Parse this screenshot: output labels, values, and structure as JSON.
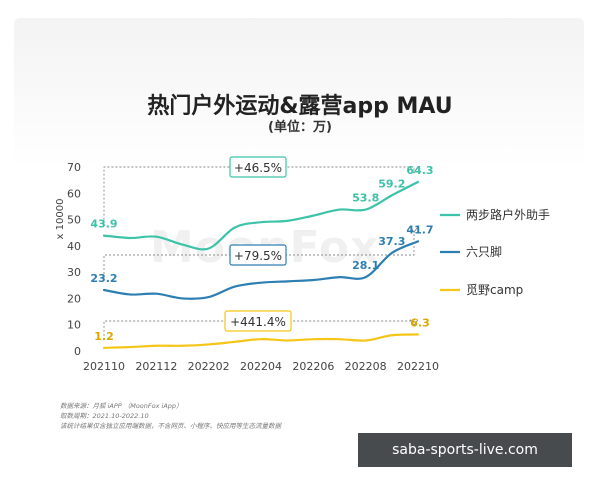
{
  "title": "热门户外运动&露营app MAU",
  "subtitle": "(单位：万)",
  "watermark_logo": "MoonFox",
  "site_watermark": "saba-sports-live.com",
  "source_lines": [
    "数据来源：月狐 iAPP （MoonFox iApp）",
    "取数周期：2021.10-2022.10",
    "该统计结果仅含独立应用端数据，不含网页、小程序、快应用等生态流量数据"
  ],
  "chart_data": {
    "type": "line",
    "title": "热门户外运动&露营app MAU",
    "subtitle": "(单位：万)",
    "ylabel": "x 10000",
    "ylim": [
      0,
      70
    ],
    "yticks": [
      0,
      10,
      20,
      30,
      40,
      50,
      60,
      70
    ],
    "x": [
      "202110",
      "202111",
      "202112",
      "202201",
      "202202",
      "202203",
      "202204",
      "202205",
      "202206",
      "202207",
      "202208",
      "202209",
      "202210"
    ],
    "xtick_labels": [
      "202110",
      "202112",
      "202202",
      "202204",
      "202206",
      "202208",
      "202210"
    ],
    "series": [
      {
        "name": "两步路户外助手",
        "color": "#3cc3a8",
        "values": [
          43.9,
          43.0,
          43.5,
          40.5,
          39.0,
          47.0,
          49.0,
          49.5,
          51.5,
          53.8,
          53.8,
          59.2,
          64.3
        ],
        "point_labels": [
          [
            0,
            "43.9"
          ],
          [
            10,
            "53.8"
          ],
          [
            11,
            "59.2"
          ],
          [
            12,
            "64.3"
          ]
        ],
        "growth": "+46.5%"
      },
      {
        "name": "六只脚",
        "color": "#2d7fb3",
        "values": [
          23.2,
          21.5,
          21.8,
          20.0,
          20.5,
          24.5,
          26.0,
          26.5,
          27.0,
          28.1,
          28.1,
          37.3,
          41.7
        ],
        "point_labels": [
          [
            0,
            "23.2"
          ],
          [
            10,
            "28.1"
          ],
          [
            11,
            "37.3"
          ],
          [
            12,
            "41.7"
          ]
        ],
        "growth": "+79.5%"
      },
      {
        "name": "觅野camp",
        "color": "#f5c518",
        "values": [
          1.2,
          1.5,
          2.0,
          2.0,
          2.5,
          3.5,
          4.5,
          4.0,
          4.5,
          4.5,
          4.0,
          6.0,
          6.3
        ],
        "point_labels": [
          [
            0,
            "1.2"
          ],
          [
            12,
            "6.3"
          ]
        ],
        "growth": "+441.4%"
      }
    ],
    "legend_position": "right",
    "grid": false
  }
}
